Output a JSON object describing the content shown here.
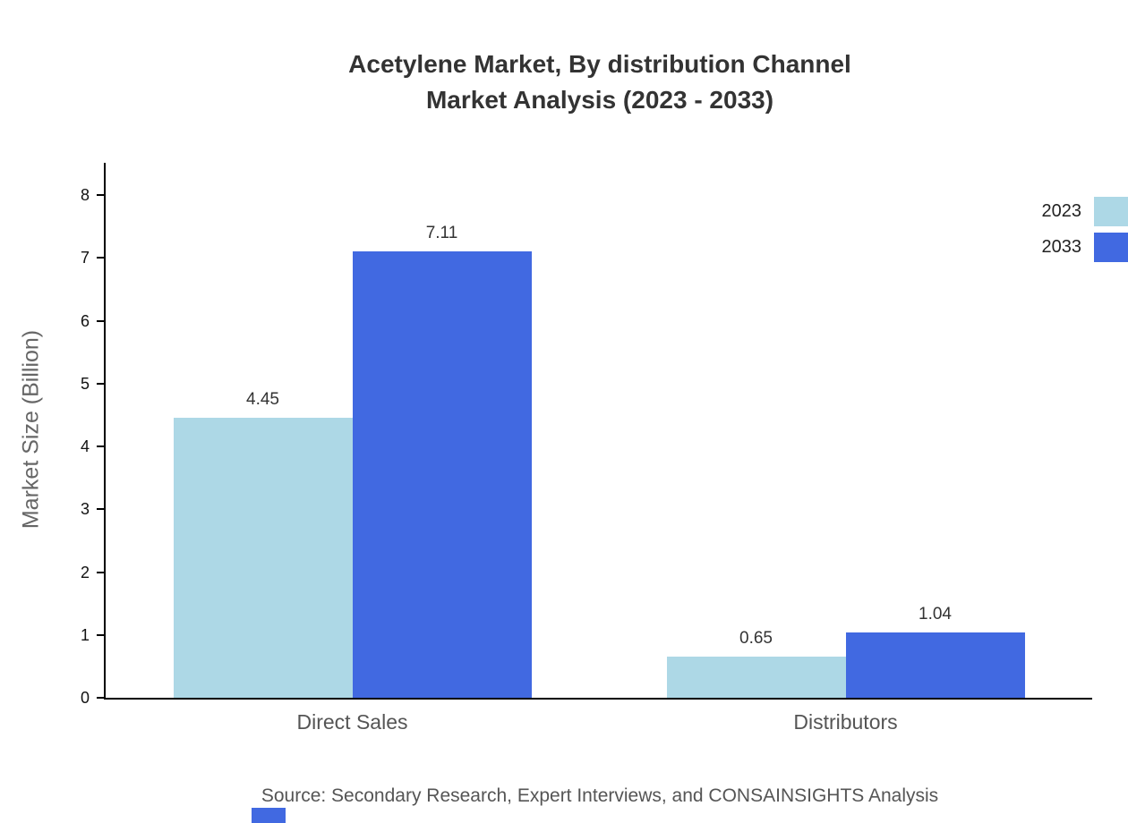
{
  "title": {
    "line1": "Acetylene Market, By distribution Channel",
    "line2": "Market Analysis (2023 - 2033)"
  },
  "chart_data": {
    "type": "bar",
    "categories": [
      "Direct Sales",
      "Distributors"
    ],
    "series": [
      {
        "name": "2023",
        "color": "#ADD8E6",
        "values": [
          4.45,
          0.65
        ]
      },
      {
        "name": "2033",
        "color": "#4169E1",
        "values": [
          7.11,
          1.04
        ]
      }
    ],
    "title": "Acetylene Market, By distribution Channel Market Analysis (2023 - 2033)",
    "xlabel": "",
    "ylabel": "Market Size (Billion)",
    "ylim": [
      0,
      8
    ],
    "yticks": [
      0,
      1,
      2,
      3,
      4,
      5,
      6,
      7,
      8
    ],
    "grid": false,
    "legend_position": "top-right",
    "value_labels": [
      "4.45",
      "7.11",
      "0.65",
      "1.04"
    ]
  },
  "source": "Source: Secondary Research, Expert Interviews, and CONSAINSIGHTS Analysis"
}
